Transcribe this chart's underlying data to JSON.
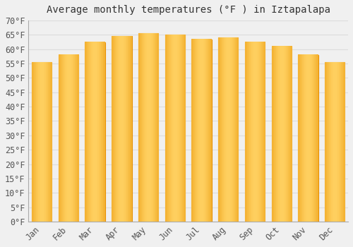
{
  "title": "Average monthly temperatures (°F ) in Iztapalapa",
  "months": [
    "Jan",
    "Feb",
    "Mar",
    "Apr",
    "May",
    "Jun",
    "Jul",
    "Aug",
    "Sep",
    "Oct",
    "Nov",
    "Dec"
  ],
  "values": [
    55.5,
    58.0,
    62.5,
    64.5,
    65.5,
    65.0,
    63.5,
    64.0,
    62.5,
    61.0,
    58.0,
    55.5
  ],
  "bar_color_center": "#FFD060",
  "bar_color_edge": "#E89000",
  "background_color": "#f0f0f0",
  "grid_color": "#dddddd",
  "ylim": [
    0,
    70
  ],
  "ytick_step": 5,
  "title_fontsize": 10,
  "tick_fontsize": 8.5
}
